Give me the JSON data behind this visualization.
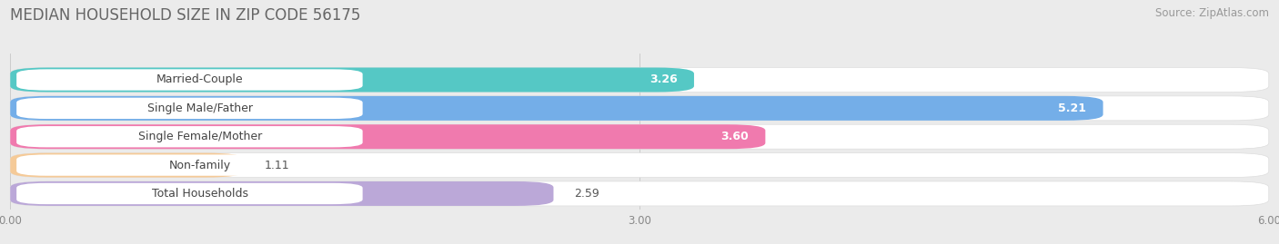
{
  "title": "MEDIAN HOUSEHOLD SIZE IN ZIP CODE 56175",
  "source": "Source: ZipAtlas.com",
  "categories": [
    "Married-Couple",
    "Single Male/Father",
    "Single Female/Mother",
    "Non-family",
    "Total Households"
  ],
  "values": [
    3.26,
    5.21,
    3.6,
    1.11,
    2.59
  ],
  "value_labels": [
    "3.26",
    "5.21",
    "3.60",
    "1.11",
    "2.59"
  ],
  "bar_colors": [
    "#55C8C5",
    "#74AEE8",
    "#F07AAE",
    "#F5CA98",
    "#BBA8D8"
  ],
  "xlim": [
    0,
    6.0
  ],
  "xtick_labels": [
    "0.00",
    "3.00",
    "6.00"
  ],
  "xtick_values": [
    0.0,
    3.0,
    6.0
  ],
  "title_fontsize": 12,
  "source_fontsize": 8.5,
  "label_fontsize": 9,
  "value_fontsize": 9,
  "background_color": "#ebebeb",
  "bar_background": "#f8f8f8",
  "value_inside_threshold": 3.0
}
